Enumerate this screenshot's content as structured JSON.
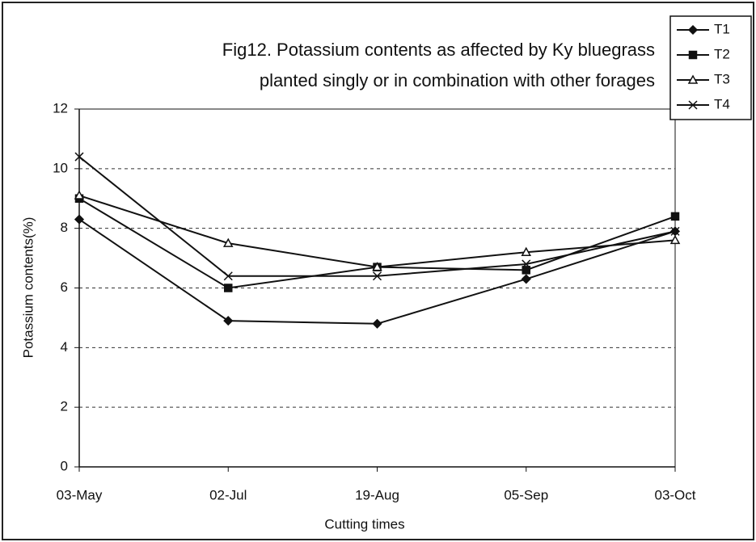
{
  "chart_data": {
    "type": "line",
    "title": [
      "Fig12. Potassium contents as affected by Ky bluegrass",
      "planted singly or in combination with other forages"
    ],
    "x_label": "Cutting times",
    "y_label": "Potassium contents(%)",
    "categories": [
      "03-May",
      "02-Jul",
      "19-Aug",
      "05-Sep",
      "03-Oct"
    ],
    "series": [
      {
        "name": "T1",
        "color": "#111111",
        "marker": "diamond",
        "values": [
          8.3,
          4.9,
          4.8,
          6.3,
          7.9
        ]
      },
      {
        "name": "T2",
        "color": "#111111",
        "marker": "square",
        "values": [
          9.0,
          6.0,
          6.7,
          6.6,
          8.4
        ]
      },
      {
        "name": "T3",
        "color": "#111111",
        "marker": "triangle",
        "values": [
          9.1,
          7.5,
          6.7,
          7.2,
          7.6
        ]
      },
      {
        "name": "T4",
        "color": "#111111",
        "marker": "x",
        "values": [
          10.4,
          6.4,
          6.4,
          6.8,
          7.9
        ]
      }
    ],
    "ylim": [
      0,
      12
    ],
    "yticks": [
      0,
      2,
      4,
      6,
      8,
      10,
      12
    ],
    "grid": true,
    "legend": "top-right"
  }
}
